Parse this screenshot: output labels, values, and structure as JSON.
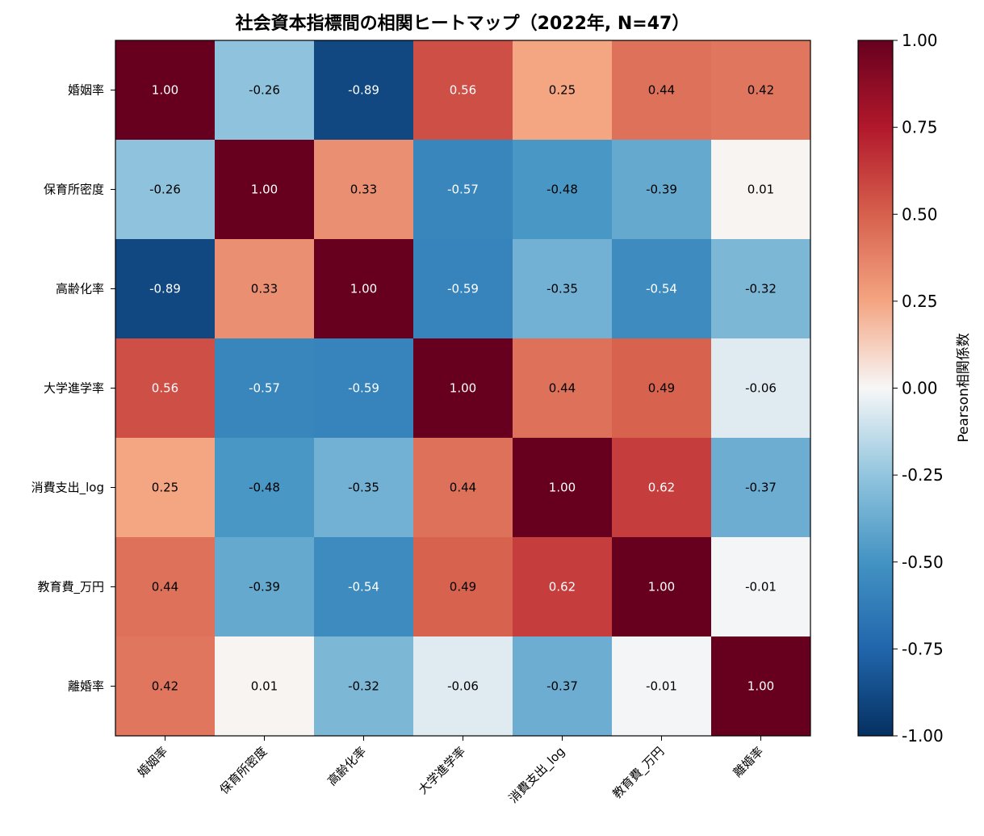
{
  "chart_data": {
    "type": "heatmap",
    "title": "社会資本指標間の相関ヒートマップ（2022年, N=47）",
    "labels": [
      "婚姻率",
      "保育所密度",
      "高齢化率",
      "大学進学率",
      "消費支出_log",
      "教育費_万円",
      "離婚率"
    ],
    "matrix": [
      [
        1.0,
        -0.26,
        -0.89,
        0.56,
        0.25,
        0.44,
        0.42
      ],
      [
        -0.26,
        1.0,
        0.33,
        -0.57,
        -0.48,
        -0.39,
        0.01
      ],
      [
        -0.89,
        0.33,
        1.0,
        -0.59,
        -0.35,
        -0.54,
        -0.32
      ],
      [
        0.56,
        -0.57,
        -0.59,
        1.0,
        0.44,
        0.49,
        -0.06
      ],
      [
        0.25,
        -0.48,
        -0.35,
        0.44,
        1.0,
        0.62,
        -0.37
      ],
      [
        0.44,
        -0.39,
        -0.54,
        0.49,
        0.62,
        1.0,
        -0.01
      ],
      [
        0.42,
        0.01,
        -0.32,
        -0.06,
        -0.37,
        -0.01,
        1.0
      ]
    ],
    "cell_text": [
      [
        "1.00",
        "-0.26",
        "-0.89",
        "0.56",
        "0.25",
        "0.44",
        "0.42"
      ],
      [
        "-0.26",
        "1.00",
        "0.33",
        "-0.57",
        "-0.48",
        "-0.39",
        "0.01"
      ],
      [
        "-0.89",
        "0.33",
        "1.00",
        "-0.59",
        "-0.35",
        "-0.54",
        "-0.32"
      ],
      [
        "0.56",
        "-0.57",
        "-0.59",
        "1.00",
        "0.44",
        "0.49",
        "-0.06"
      ],
      [
        "0.25",
        "-0.48",
        "-0.35",
        "0.44",
        "1.00",
        "0.62",
        "-0.37"
      ],
      [
        "0.44",
        "-0.39",
        "-0.54",
        "0.49",
        "0.62",
        "1.00",
        "-0.01"
      ],
      [
        "0.42",
        "0.01",
        "-0.32",
        "-0.06",
        "-0.37",
        "-0.01",
        "1.00"
      ]
    ],
    "colorbar": {
      "label": "Pearson相関係数",
      "range": [
        -1.0,
        1.0
      ],
      "ticks": [
        1.0,
        0.75,
        0.5,
        0.25,
        0.0,
        -0.25,
        -0.5,
        -0.75,
        -1.0
      ],
      "tick_labels": [
        "1.00",
        "0.75",
        "0.50",
        "0.25",
        "0.00",
        "-0.25",
        "-0.50",
        "-0.75",
        "-1.00"
      ],
      "colormap": "RdBu_r"
    },
    "grid": false
  }
}
